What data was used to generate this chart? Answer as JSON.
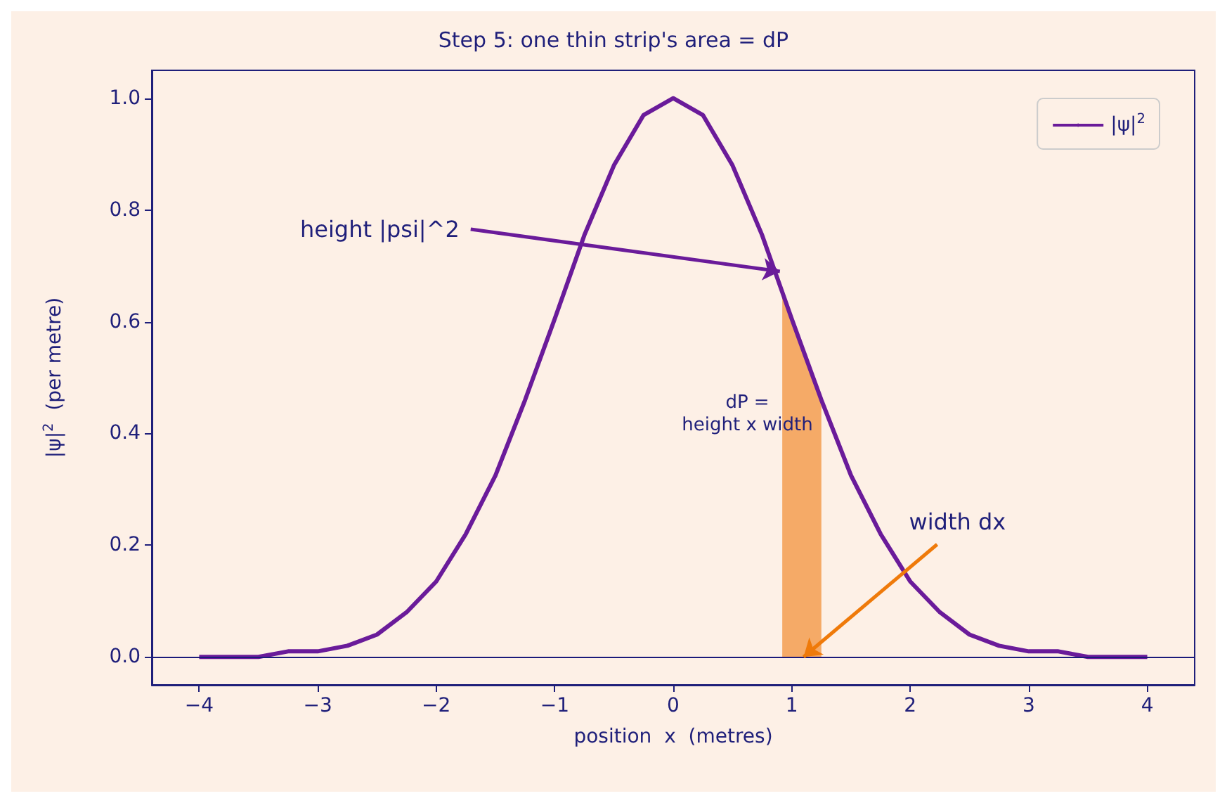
{
  "chart_data": {
    "type": "line",
    "title": "Step 5: one thin strip's area = dP",
    "xlabel": "position  x  (metres)",
    "ylabel": "|ψ|$^{2}$  (per metre)",
    "xlim": [
      -4.4,
      4.4
    ],
    "ylim": [
      -0.05,
      1.05
    ],
    "xticks": [
      {
        "value": -4,
        "label": "−4"
      },
      {
        "value": -3,
        "label": "−3"
      },
      {
        "value": -2,
        "label": "−2"
      },
      {
        "value": -1,
        "label": "−1"
      },
      0,
      1,
      2,
      3,
      4
    ],
    "yticks": [
      {
        "value": 0,
        "label": "0.0"
      },
      {
        "value": 0.2,
        "label": "0.2"
      },
      {
        "value": 0.4,
        "label": "0.4"
      },
      {
        "value": 0.6,
        "label": "0.6"
      },
      {
        "value": 0.8,
        "label": "0.8"
      },
      {
        "value": 1,
        "label": "1.0"
      }
    ],
    "grid": false,
    "legend": "top right",
    "series": [
      {
        "name": "|ψ|$^{2}$",
        "type": "line",
        "color": "#6a1b9a",
        "x": [
          -4,
          -3.75,
          -3.5,
          -3.25,
          -3,
          -2.75,
          -2.5,
          -2.25,
          -2,
          -1.75,
          -1.5,
          -1.25,
          -1,
          -0.75,
          -0.5,
          -0.25,
          0,
          0.25,
          0.5,
          0.75,
          1,
          1.25,
          1.5,
          1.75,
          2,
          2.25,
          2.5,
          2.75,
          3,
          3.25,
          3.5,
          3.75,
          4
        ],
        "values": [
          0,
          0,
          0,
          0.01,
          0.01,
          0.02,
          0.04,
          0.08,
          0.135,
          0.22,
          0.325,
          0.46,
          0.605,
          0.755,
          0.88,
          0.97,
          1,
          0.97,
          0.88,
          0.755,
          0.605,
          0.46,
          0.325,
          0.22,
          0.135,
          0.08,
          0.04,
          0.02,
          0.01,
          0.01,
          0,
          0,
          0
        ]
      },
      {
        "type": "area",
        "color": "#f4a259",
        "x": [
          0.92,
          1,
          1.1,
          1.25
        ],
        "values": [
          0.655,
          0.605,
          0.545,
          0.46
        ]
      }
    ],
    "ref_lines": [
      {
        "axis": "y",
        "value": 0,
        "color": "#1a1a7a"
      }
    ],
    "annotations": [
      {
        "text": "height |psi|^2",
        "x": 0.9,
        "y": 0.69
      },
      "dP =\nheight x width",
      {
        "text": "width dx",
        "x": 1.1,
        "y": 0
      }
    ]
  }
}
